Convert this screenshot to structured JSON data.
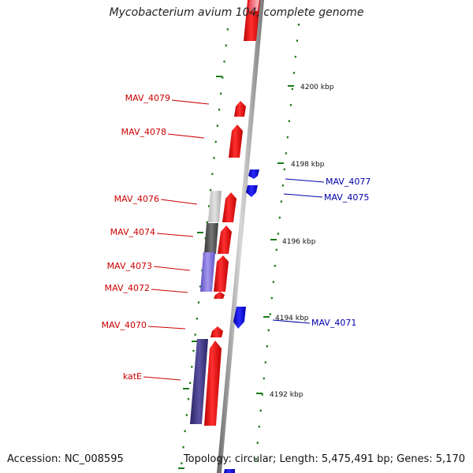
{
  "title": "Mycobacterium avium 104, complete genome",
  "footer": {
    "accession": "Accession: NC_008595",
    "topology": "Topology: circular; Length: 5,475,491 bp; Genes: 5,170"
  },
  "colors": {
    "forward_gene": "#ee0000",
    "reverse_gene": "#0000ee",
    "label_forward": "#cc0000",
    "label_reverse": "#0000aa",
    "tick": "#1a7a1a",
    "backbone": "#888888"
  },
  "scale_labels": [
    "4200 kbp",
    "4198 kbp",
    "4196 kbp",
    "4194 kbp",
    "4192 kbp"
  ],
  "gene_labels_left": [
    "MAV_4079",
    "MAV_4078",
    "MAV_4076",
    "MAV_4074",
    "MAV_4073",
    "MAV_4072",
    "MAV_4070",
    "katE"
  ],
  "gene_labels_right": [
    "MAV_4077",
    "MAV_4075",
    "MAV_4071"
  ]
}
